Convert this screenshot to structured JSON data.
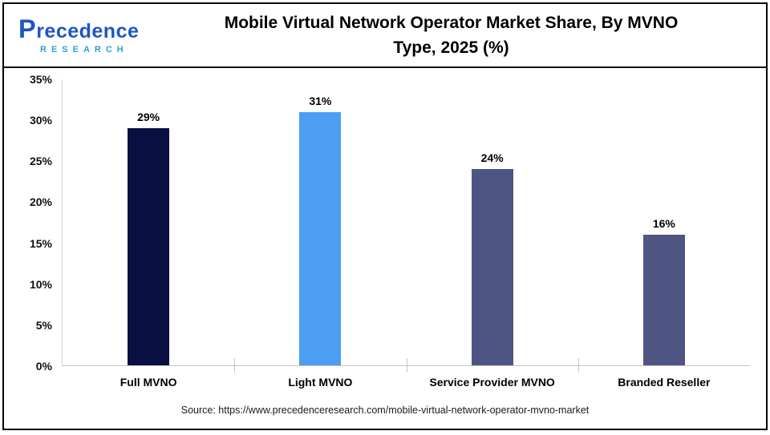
{
  "logo": {
    "wordmark": "Precedence",
    "subtitle": "RESEARCH"
  },
  "header": {
    "title_line1": "Mobile Virtual Network Operator Market Share, By MVNO",
    "title_line2": "Type, 2025 (%)"
  },
  "chart_data": {
    "type": "bar",
    "title": "Mobile Virtual Network Operator Market Share, By MVNO Type, 2025 (%)",
    "categories": [
      "Full MVNO",
      "Light MVNO",
      "Service Provider MVNO",
      "Branded Reseller"
    ],
    "values": [
      29,
      31,
      24,
      16
    ],
    "value_labels": [
      "29%",
      "31%",
      "24%",
      "16%"
    ],
    "xlabel": "",
    "ylabel": "",
    "ylim": [
      0,
      35
    ],
    "ytick_step": 5,
    "yticks": [
      "0%",
      "5%",
      "10%",
      "15%",
      "20%",
      "25%",
      "30%",
      "35%"
    ],
    "bar_colors": [
      "#0A0F42",
      "#4D9EF2",
      "#4F5582",
      "#4F5582"
    ],
    "grid": false,
    "legend": "none"
  },
  "source": "Source: https://www.precedenceresearch.com/mobile-virtual-network-operator-mvno-market",
  "colors": {
    "logo_primary": "#1F55C4",
    "logo_secondary": "#29A3DC",
    "axis_line": "#C4C4C4",
    "bar_navy": "#0A0F42",
    "bar_light_blue": "#4D9EF2",
    "bar_slate": "#4F5582"
  }
}
